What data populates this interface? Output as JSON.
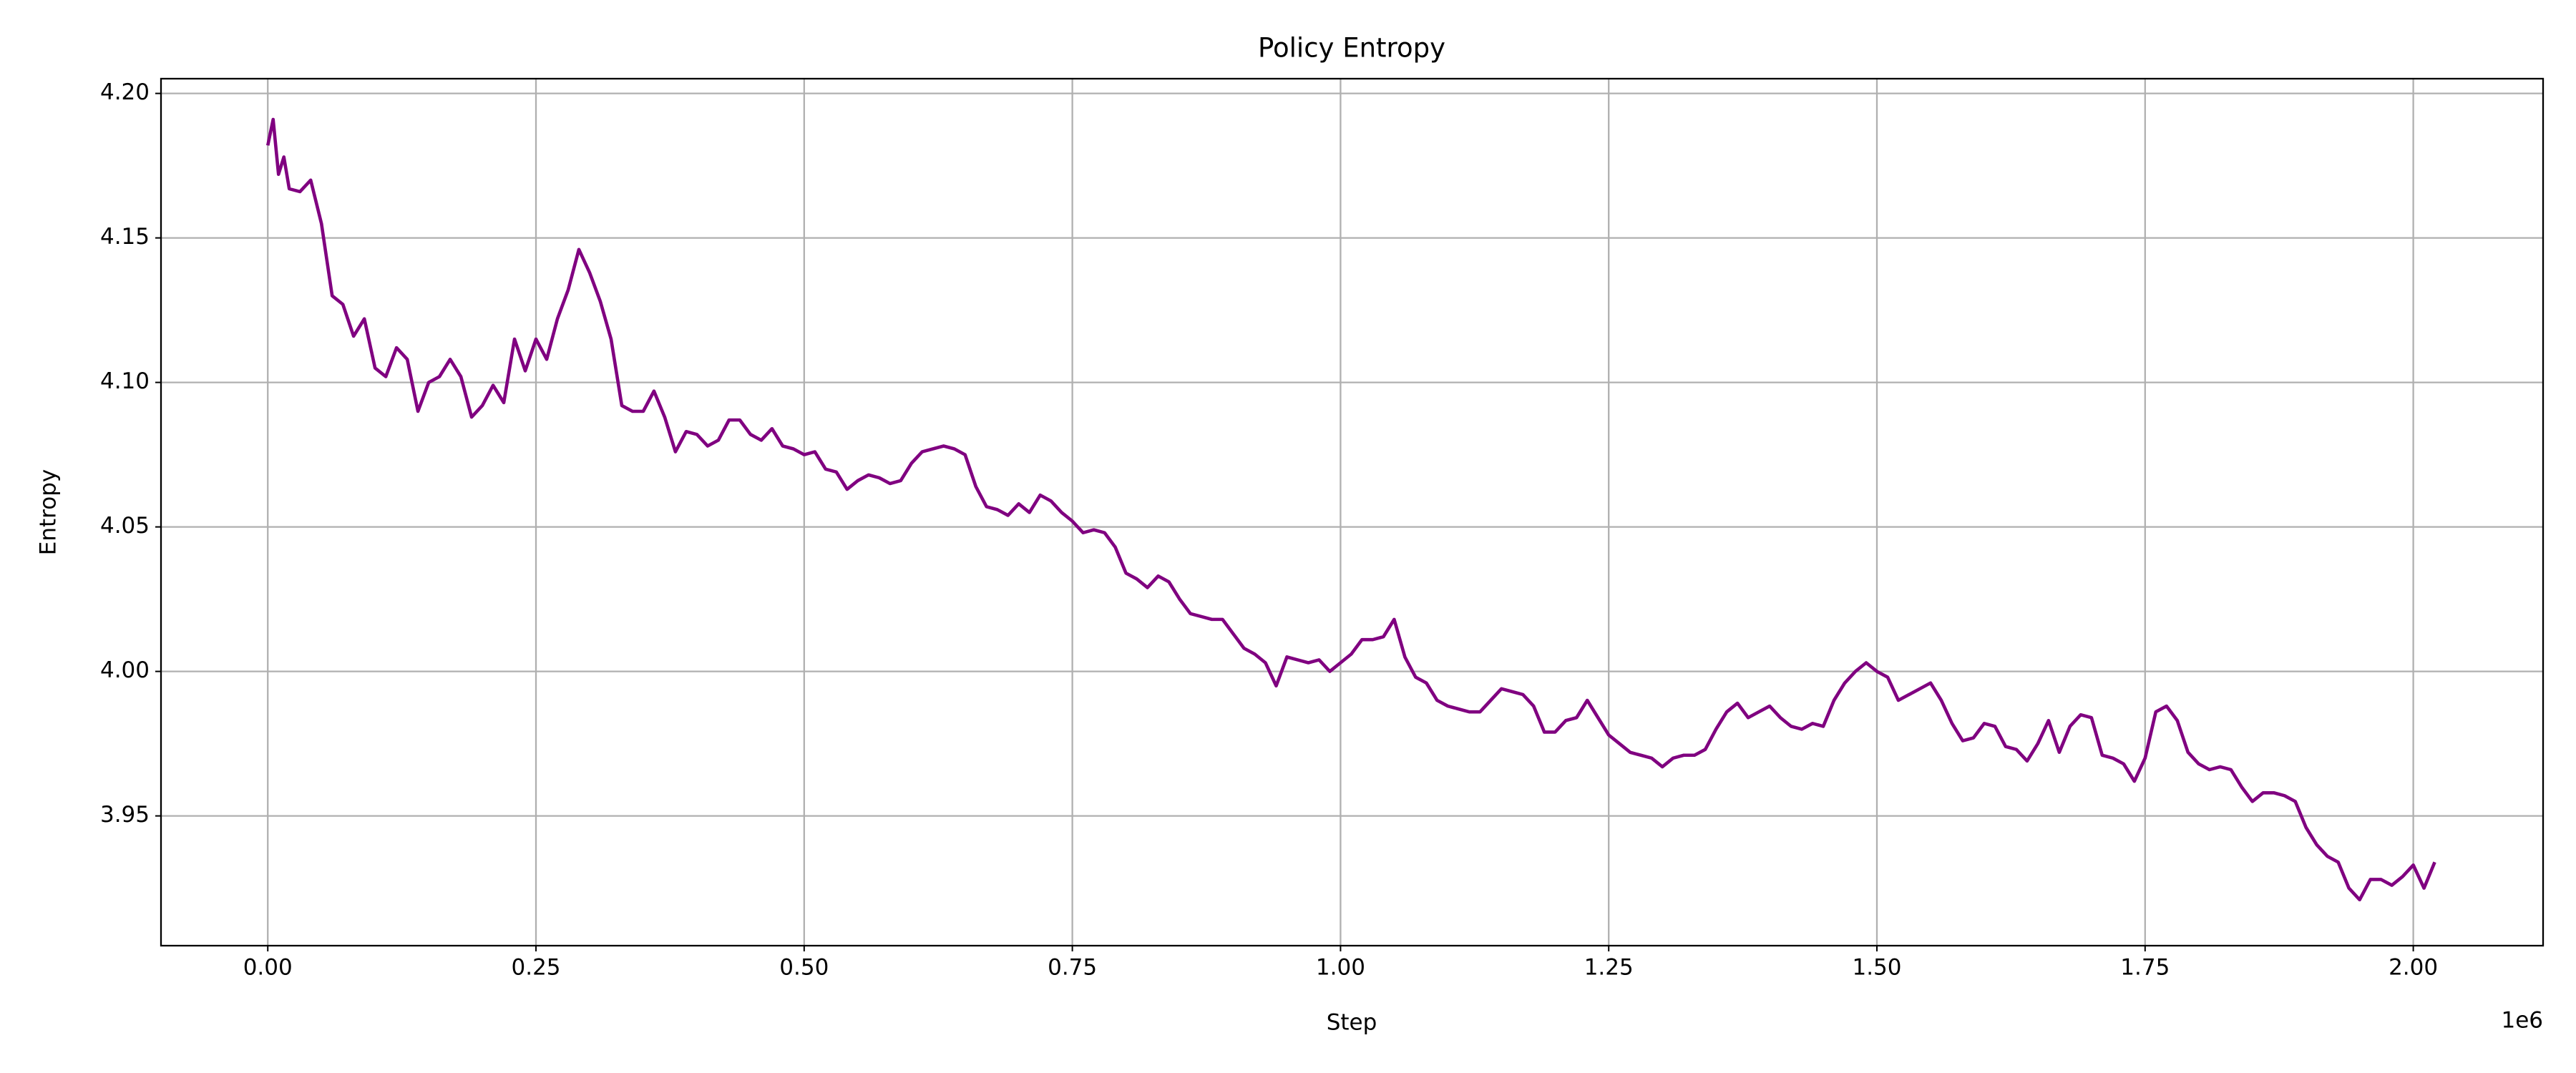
{
  "chart_data": {
    "type": "line",
    "title": "Policy Entropy",
    "x_label": "Step",
    "y_label": "Entropy",
    "x_offset_label": "1e6",
    "color": "#800080",
    "grid": true,
    "xlim": [
      -99540,
      2121000
    ],
    "ylim": [
      3.9051,
      4.2051
    ],
    "xticks": [
      {
        "value": 0,
        "label": "0.00"
      },
      {
        "value": 250000,
        "label": "0.25"
      },
      {
        "value": 500000,
        "label": "0.50"
      },
      {
        "value": 750000,
        "label": "0.75"
      },
      {
        "value": 1000000,
        "label": "1.00"
      },
      {
        "value": 1250000,
        "label": "1.25"
      },
      {
        "value": 1500000,
        "label": "1.50"
      },
      {
        "value": 1750000,
        "label": "1.75"
      },
      {
        "value": 2000000,
        "label": "2.00"
      }
    ],
    "yticks": [
      3.95,
      {
        "value": 4.0,
        "label": "4.00"
      },
      4.05,
      {
        "value": 4.1,
        "label": "4.10"
      },
      4.15,
      {
        "value": 4.2,
        "label": "4.20"
      }
    ],
    "x": [
      0,
      5000,
      10000,
      15000,
      20000,
      30000,
      40000,
      50000,
      60000,
      70000,
      80000,
      90000,
      100000,
      110000,
      120000,
      130000,
      140000,
      150000,
      160000,
      170000,
      180000,
      190000,
      200000,
      210000,
      220000,
      230000,
      240000,
      250000,
      260000,
      270000,
      280000,
      290000,
      300000,
      310000,
      320000,
      330000,
      340000,
      350000,
      360000,
      370000,
      380000,
      390000,
      400000,
      410000,
      420000,
      430000,
      440000,
      450000,
      460000,
      470000,
      480000,
      490000,
      500000,
      510000,
      520000,
      530000,
      540000,
      550000,
      560000,
      570000,
      580000,
      590000,
      600000,
      610000,
      620000,
      630000,
      640000,
      650000,
      660000,
      670000,
      680000,
      690000,
      700000,
      710000,
      720000,
      730000,
      740000,
      750000,
      760000,
      770000,
      780000,
      790000,
      800000,
      810000,
      820000,
      830000,
      840000,
      850000,
      860000,
      870000,
      880000,
      890000,
      900000,
      910000,
      920000,
      930000,
      940000,
      950000,
      960000,
      970000,
      980000,
      990000,
      1000000,
      1010000,
      1020000,
      1030000,
      1040000,
      1050000,
      1060000,
      1070000,
      1080000,
      1090000,
      1100000,
      1110000,
      1120000,
      1130000,
      1140000,
      1150000,
      1160000,
      1170000,
      1180000,
      1190000,
      1200000,
      1210000,
      1220000,
      1230000,
      1240000,
      1250000,
      1260000,
      1270000,
      1280000,
      1290000,
      1300000,
      1310000,
      1320000,
      1330000,
      1340000,
      1350000,
      1360000,
      1370000,
      1380000,
      1390000,
      1400000,
      1410000,
      1420000,
      1430000,
      1440000,
      1450000,
      1460000,
      1470000,
      1480000,
      1490000,
      1500000,
      1510000,
      1520000,
      1530000,
      1540000,
      1550000,
      1560000,
      1570000,
      1580000,
      1590000,
      1600000,
      1610000,
      1620000,
      1630000,
      1640000,
      1650000,
      1660000,
      1670000,
      1680000,
      1690000,
      1700000,
      1710000,
      1720000,
      1730000,
      1740000,
      1750000,
      1760000,
      1770000,
      1780000,
      1790000,
      1800000,
      1810000,
      1820000,
      1830000,
      1840000,
      1850000,
      1860000,
      1870000,
      1880000,
      1890000,
      1900000,
      1910000,
      1920000,
      1930000,
      1940000,
      1950000,
      1960000,
      1970000,
      1980000,
      1990000,
      2000000,
      2010000,
      2020000
    ],
    "values": [
      4.182,
      4.191,
      4.172,
      4.178,
      4.167,
      4.166,
      4.17,
      4.155,
      4.13,
      4.127,
      4.116,
      4.122,
      4.105,
      4.102,
      4.112,
      4.108,
      4.09,
      4.1,
      4.102,
      4.108,
      4.102,
      4.088,
      4.092,
      4.099,
      4.093,
      4.115,
      4.104,
      4.115,
      4.108,
      4.122,
      4.132,
      4.146,
      4.138,
      4.128,
      4.115,
      4.092,
      4.09,
      4.09,
      4.097,
      4.088,
      4.076,
      4.083,
      4.082,
      4.078,
      4.08,
      4.087,
      4.087,
      4.082,
      4.08,
      4.084,
      4.078,
      4.077,
      4.075,
      4.076,
      4.07,
      4.069,
      4.063,
      4.066,
      4.068,
      4.067,
      4.065,
      4.066,
      4.072,
      4.076,
      4.077,
      4.078,
      4.077,
      4.075,
      4.064,
      4.057,
      4.056,
      4.054,
      4.058,
      4.055,
      4.061,
      4.059,
      4.055,
      4.052,
      4.048,
      4.049,
      4.048,
      4.043,
      4.034,
      4.032,
      4.029,
      4.033,
      4.031,
      4.025,
      4.02,
      4.019,
      4.018,
      4.018,
      4.013,
      4.008,
      4.006,
      4.003,
      3.995,
      4.005,
      4.004,
      4.003,
      4.004,
      4.0,
      4.003,
      4.006,
      4.011,
      4.011,
      4.012,
      4.018,
      4.005,
      3.998,
      3.996,
      3.99,
      3.988,
      3.987,
      3.986,
      3.986,
      3.99,
      3.994,
      3.993,
      3.992,
      3.988,
      3.979,
      3.979,
      3.983,
      3.984,
      3.99,
      3.984,
      3.978,
      3.975,
      3.972,
      3.971,
      3.97,
      3.967,
      3.97,
      3.971,
      3.971,
      3.973,
      3.98,
      3.986,
      3.989,
      3.984,
      3.986,
      3.988,
      3.984,
      3.981,
      3.98,
      3.982,
      3.981,
      3.99,
      3.996,
      4.0,
      4.003,
      4.0,
      3.998,
      3.99,
      3.992,
      3.994,
      3.996,
      3.99,
      3.982,
      3.976,
      3.977,
      3.982,
      3.981,
      3.974,
      3.973,
      3.969,
      3.975,
      3.983,
      3.972,
      3.981,
      3.985,
      3.984,
      3.971,
      3.97,
      3.968,
      3.962,
      3.97,
      3.986,
      3.988,
      3.983,
      3.972,
      3.968,
      3.966,
      3.967,
      3.966,
      3.96,
      3.955,
      3.958,
      3.958,
      3.957,
      3.955,
      3.946,
      3.94,
      3.936,
      3.934,
      3.925,
      3.921,
      3.928,
      3.928,
      3.926,
      3.929,
      3.933,
      3.925,
      3.934
    ]
  }
}
